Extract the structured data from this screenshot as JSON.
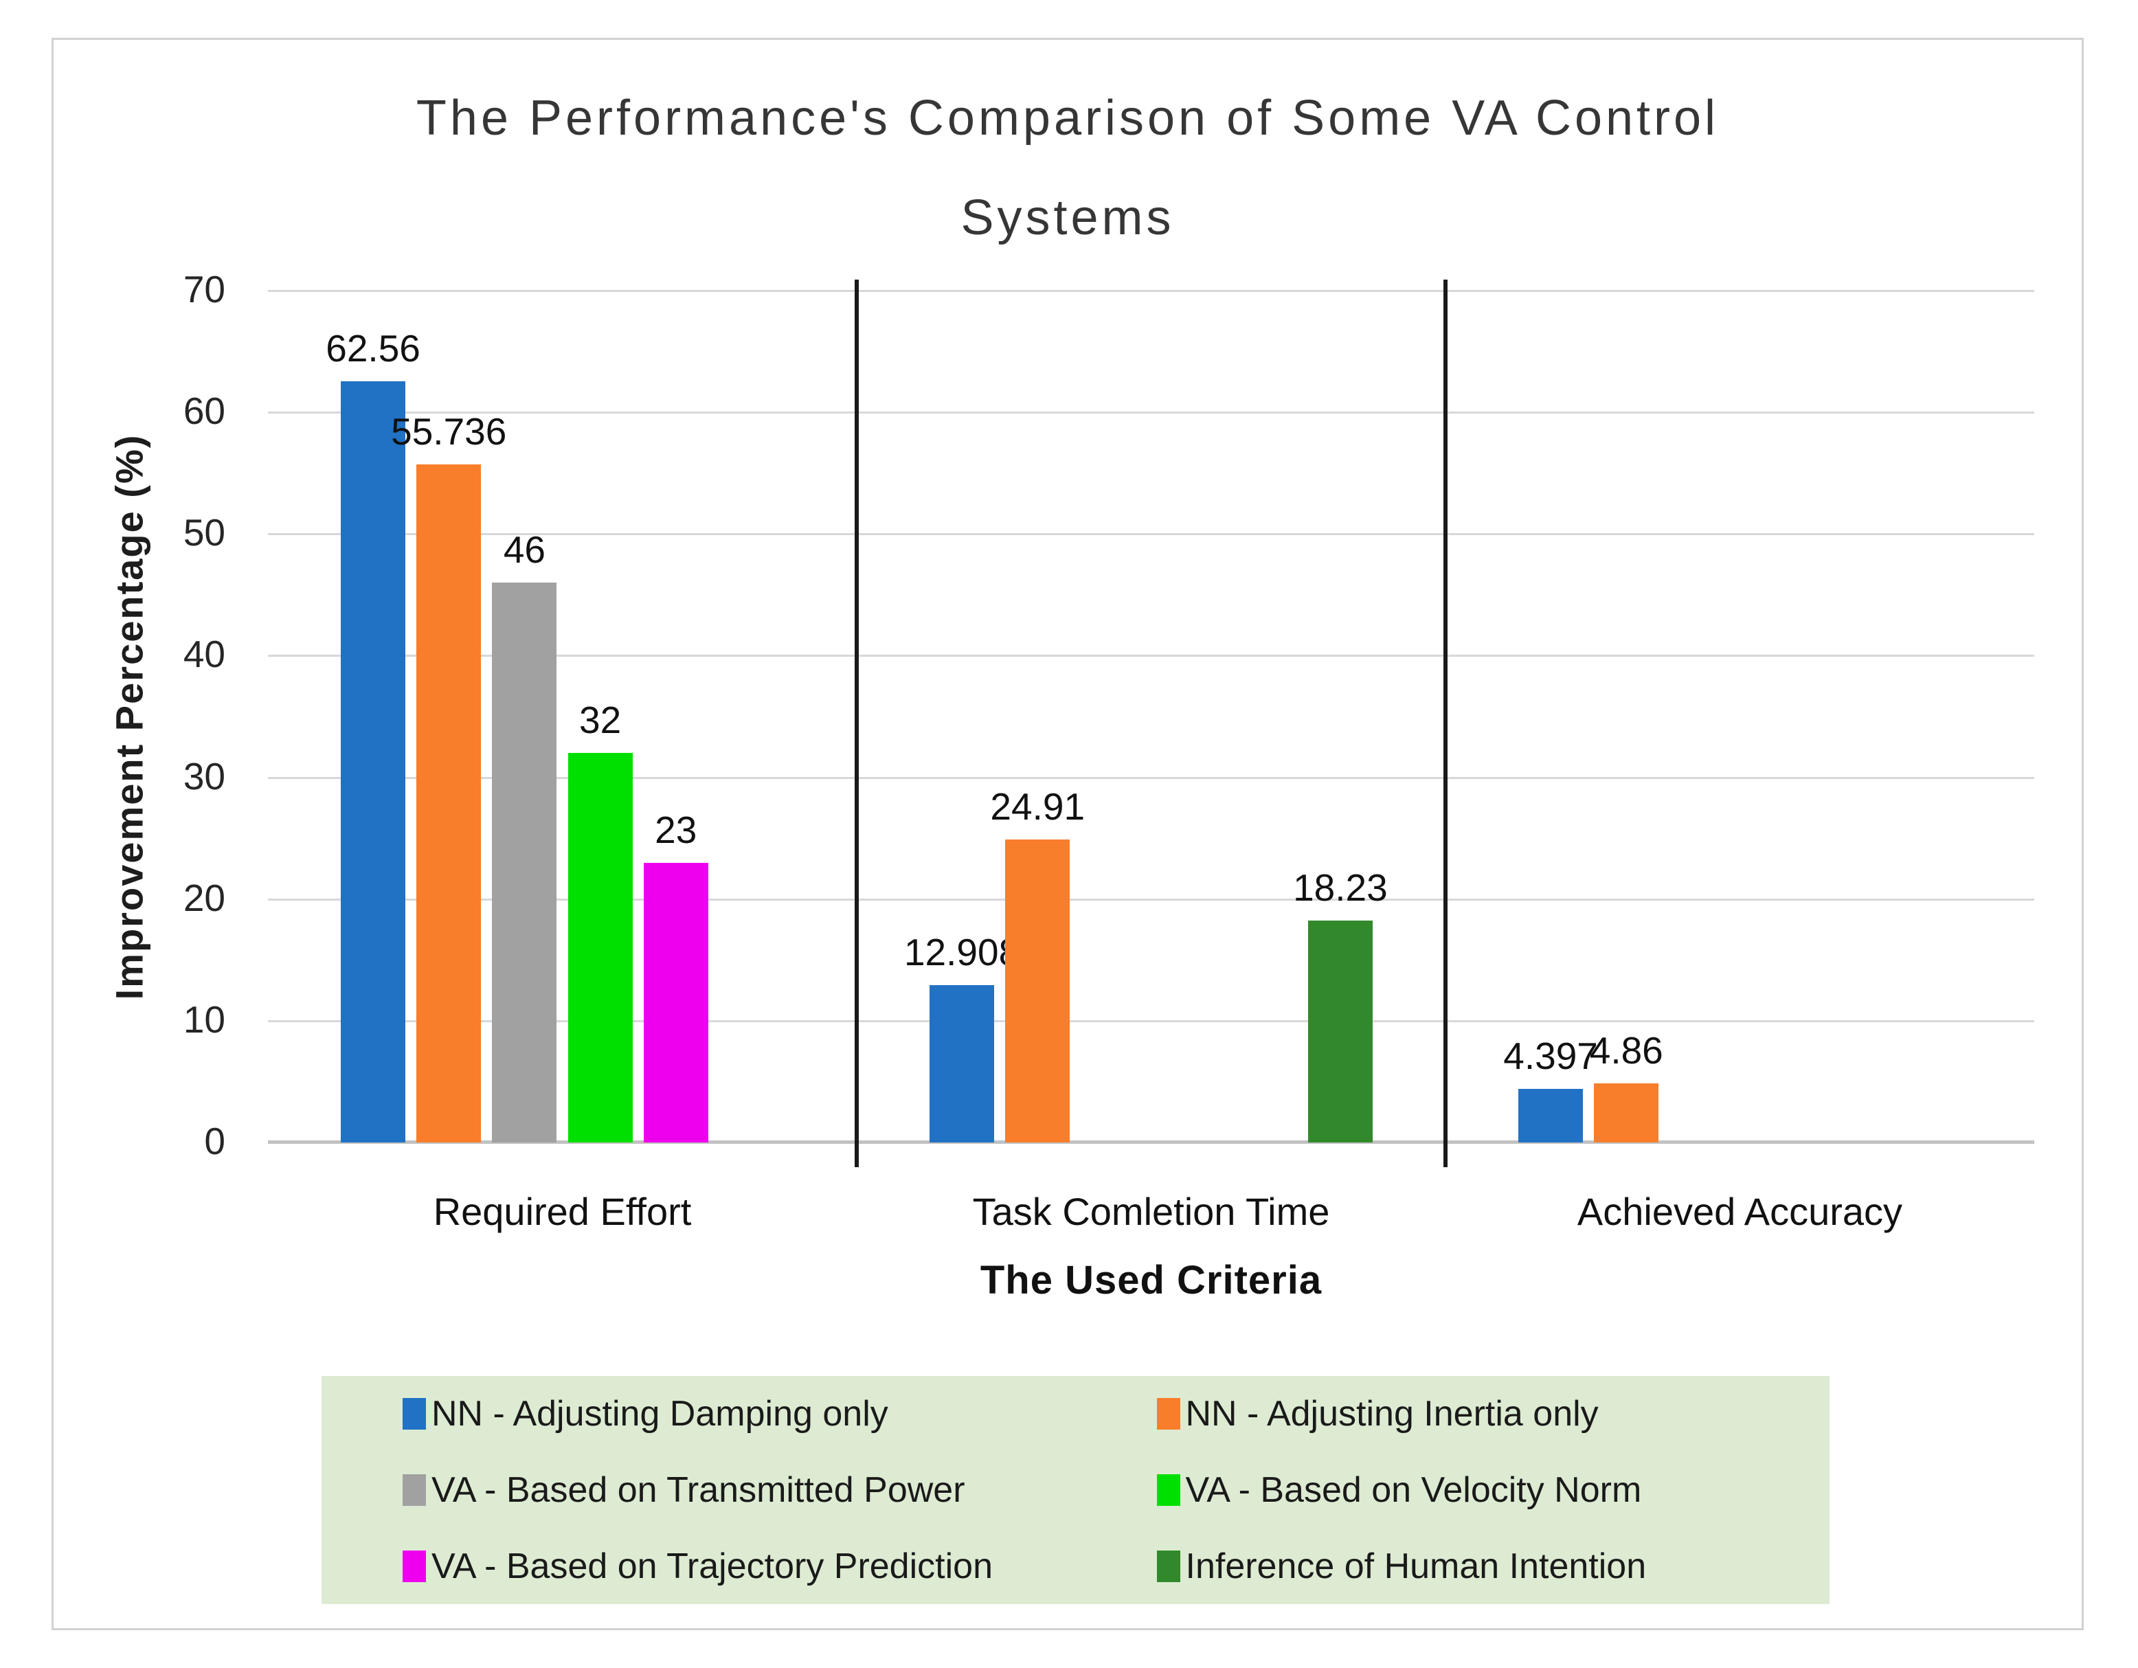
{
  "chart_data": {
    "type": "bar",
    "title": "The Performance's Comparison of Some VA Control Systems",
    "title_lines": [
      "The Performance's Comparison of Some VA Control",
      "Systems"
    ],
    "xlabel": "The Used Criteria",
    "ylabel": "Improvement Percentage (%)",
    "categories": [
      "Required Effort",
      "Task Comletion Time",
      "Achieved Accuracy"
    ],
    "series": [
      {
        "name": "NN - Adjusting Damping only",
        "color": "#2172c4",
        "values": [
          62.56,
          12.908,
          4.397
        ]
      },
      {
        "name": "NN - Adjusting Inertia only",
        "color": "#f87e2b",
        "values": [
          55.736,
          24.91,
          4.86
        ]
      },
      {
        "name": "VA - Based on Transmitted Power",
        "color": "#a1a1a1",
        "values": [
          46,
          null,
          null
        ]
      },
      {
        "name": "VA - Based on Velocity Norm",
        "color": "#00e000",
        "values": [
          32,
          null,
          null
        ]
      },
      {
        "name": "VA - Based on Trajectory Prediction",
        "color": "#ee00ee",
        "values": [
          23,
          null,
          null
        ]
      },
      {
        "name": "Inference of Human Intention",
        "color": "#32892b",
        "values": [
          null,
          18.23,
          null
        ]
      }
    ],
    "ylim": [
      0,
      70
    ],
    "yticks": [
      0,
      10,
      20,
      30,
      40,
      50,
      60,
      70
    ],
    "grid": true,
    "legend_position": "bottom",
    "legend_background": "#ddebd2",
    "group_separator_color": "#1a1a1a"
  }
}
